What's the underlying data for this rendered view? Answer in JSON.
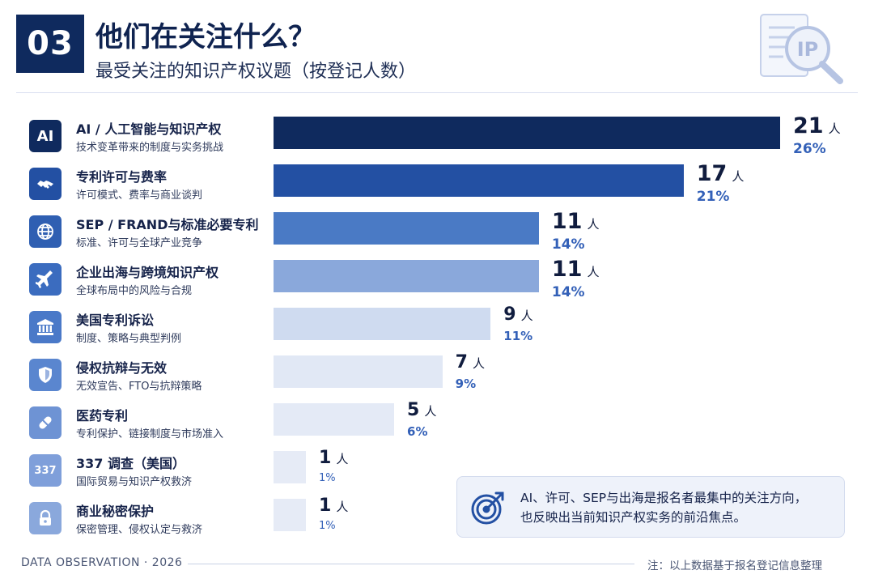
{
  "header": {
    "section_number": "03",
    "title": "他们在关注什么？",
    "subtitle": "最受关注的知识产权议题（按登记人数）",
    "logo_text": "IP"
  },
  "chart_data": {
    "type": "bar",
    "orientation": "horizontal",
    "unit": "人",
    "categories": [
      "AI / 人工智能与知识产权",
      "专利许可与费率",
      "SEP / FRAND与标准必要专利",
      "企业出海与跨境知识产权",
      "美国专利诉讼",
      "侵权抗辩与无效",
      "医药专利",
      "337 调查（美国）",
      "商业秘密保护"
    ],
    "descriptions": [
      "技术变革带来的制度与实务挑战",
      "许可模式、费率与商业谈判",
      "标准、许可与全球产业竞争",
      "全球布局中的风险与合规",
      "制度、策略与典型判例",
      "无效宣告、FTO与抗辩策略",
      "专利保护、链接制度与市场准入",
      "国际贸易与知识产权救济",
      "保密管理、侵权认定与救济"
    ],
    "values": [
      21,
      17,
      11,
      11,
      9,
      7,
      5,
      1,
      1
    ],
    "percentages": [
      "26%",
      "21%",
      "14%",
      "14%",
      "11%",
      "9%",
      "6%",
      "1%",
      "1%"
    ],
    "icons": [
      "ai-text-icon",
      "handshake-icon",
      "globe-icon",
      "airplane-icon",
      "courthouse-icon",
      "shield-icon",
      "pill-icon",
      "text-337-icon",
      "lock-icon"
    ],
    "icon_texts": [
      "AI",
      "",
      "",
      "",
      "",
      "",
      "",
      "337",
      ""
    ],
    "bar_colors": [
      "#0f2a5e",
      "#2350a3",
      "#4a7ac5",
      "#8aa8db",
      "#cfdbf0",
      "#e1e8f5",
      "#e4eaf6",
      "#e6ebf6",
      "#e6ebf6"
    ],
    "icon_colors": [
      "#0f2a5e",
      "#2350a3",
      "#2f5fb2",
      "#3b6cbf",
      "#4a79c8",
      "#5a86cf",
      "#6e93d4",
      "#7f9fda",
      "#8aa8dc"
    ],
    "xlim": [
      0,
      21
    ],
    "grid": false,
    "legend": "none"
  },
  "callout": {
    "line1": "AI、许可、SEP与出海是报名者最集中的关注方向，",
    "line2": "也反映出当前知识产权实务的前沿焦点。"
  },
  "footer": {
    "left": "DATA OBSERVATION · 2026",
    "right": "注：以上数据基于报名登记信息整理"
  }
}
